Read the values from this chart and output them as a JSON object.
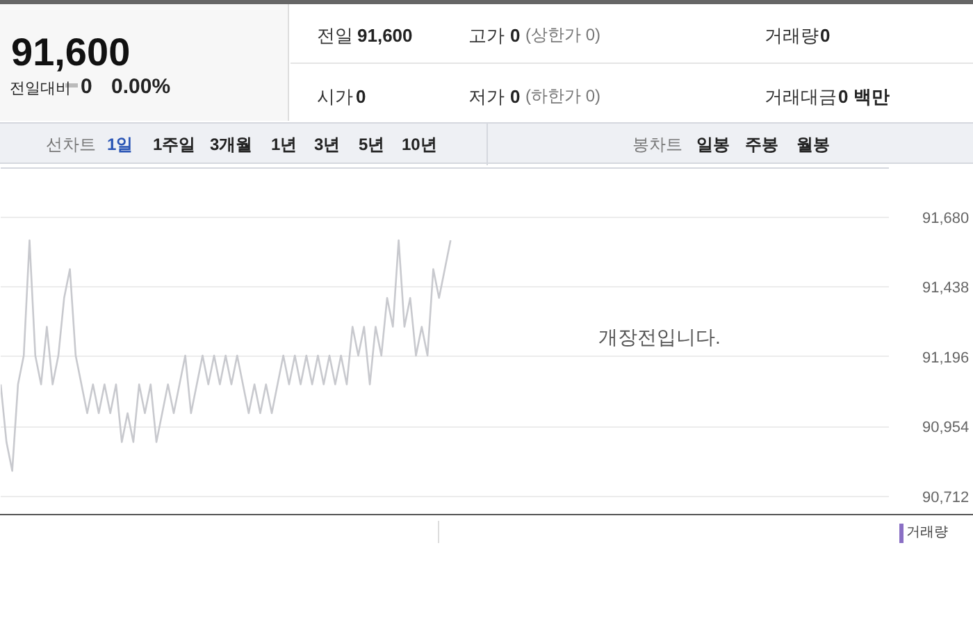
{
  "chart_data": {
    "type": "line",
    "color": "#c8c9ce",
    "categories": [
      null,
      null,
      null,
      null,
      null,
      null,
      null,
      null,
      null,
      null,
      null,
      null,
      null,
      null,
      null,
      null,
      null,
      null,
      null,
      null,
      null,
      null,
      null,
      null,
      null,
      null,
      null,
      null,
      null,
      null,
      null,
      null,
      null,
      null,
      null,
      null,
      null,
      null,
      null,
      null,
      null,
      null,
      null,
      null,
      null,
      null,
      null,
      null,
      null,
      null,
      null,
      null,
      null,
      null,
      null,
      null,
      null,
      null,
      null,
      null,
      null,
      null,
      null,
      null,
      null,
      null,
      null,
      null,
      null,
      null,
      null,
      null,
      null,
      null,
      null,
      null,
      null,
      null,
      null,
      null,
      null,
      null,
      null,
      null,
      null,
      null,
      null,
      null,
      null,
      null,
      null,
      null,
      null,
      null,
      null,
      null,
      null,
      null,
      null,
      null,
      null,
      null,
      null,
      null,
      null,
      null,
      null,
      null,
      null,
      null,
      null,
      null,
      null,
      null,
      null,
      null,
      null,
      null,
      null,
      null,
      null,
      null,
      null,
      null,
      null,
      null,
      null,
      null,
      null,
      null,
      null,
      null,
      null,
      null,
      null,
      null,
      null,
      null,
      null,
      null,
      null,
      null,
      null,
      null,
      null,
      null,
      null,
      null,
      null,
      null,
      null,
      null,
      null,
      null
    ],
    "values": [
      91100,
      90900,
      90800,
      91100,
      91200,
      91600,
      91200,
      91100,
      91300,
      91100,
      91200,
      91400,
      91500,
      91200,
      91100,
      91000,
      91100,
      91000,
      91100,
      91000,
      91100,
      90900,
      91000,
      90900,
      91100,
      91000,
      91100,
      90900,
      91000,
      91100,
      91000,
      91100,
      91200,
      91000,
      91100,
      91200,
      91100,
      91200,
      91100,
      91200,
      91100,
      91200,
      91100,
      91000,
      91100,
      91000,
      91100,
      91000,
      91100,
      91200,
      91100,
      91200,
      91100,
      91200,
      91100,
      91200,
      91100,
      91200,
      91100,
      91200,
      91100,
      91300,
      91200,
      91300,
      91100,
      91300,
      91200,
      91400,
      91300,
      91600,
      91300,
      91400,
      91200,
      91300,
      91200,
      91500,
      91400,
      91500,
      91600,
      null,
      null,
      null,
      null,
      null,
      null,
      null,
      null,
      null,
      null,
      null,
      null,
      null,
      null,
      null,
      null,
      null,
      null,
      null,
      null,
      null,
      null,
      null,
      null,
      null,
      null,
      null,
      null,
      null,
      null,
      null,
      null,
      null,
      null,
      null,
      null,
      null,
      null,
      null,
      null,
      null,
      null,
      null,
      null,
      null,
      null,
      null,
      null,
      null,
      null,
      null,
      null,
      null,
      null,
      null,
      null,
      null,
      null,
      null,
      null,
      null,
      null,
      null,
      null,
      null,
      null,
      null,
      null,
      null,
      null,
      null,
      null,
      null,
      null,
      null
    ],
    "ylim": [
      90658,
      91853
    ],
    "yticks": [
      {
        "value": 90712,
        "label": "90,712"
      },
      {
        "value": 90954,
        "label": "90,954"
      },
      {
        "value": 91196,
        "label": "91,196"
      },
      {
        "value": 91438,
        "label": "91,438"
      },
      {
        "value": 91680,
        "label": "91,680"
      }
    ],
    "tick_labels": "y",
    "grid": "y",
    "line_style": "solid",
    "marker": "none",
    "annotations": [
      "91,600",
      "전일대비",
      "0",
      "0.00%",
      "전일",
      "91,600",
      "고가",
      "0",
      "(상한가 0)",
      "거래량",
      "0",
      "시가",
      "0",
      "저가",
      "0",
      "(하한가 0)",
      "거래대금",
      "0 백만",
      "선차트",
      "1일",
      "1주일",
      "3개월",
      "1년",
      "3년",
      "5년",
      "10년",
      "봉차트",
      "일봉",
      "주봉",
      "월봉",
      "개장전입니다.",
      "거래량"
    ]
  }
}
